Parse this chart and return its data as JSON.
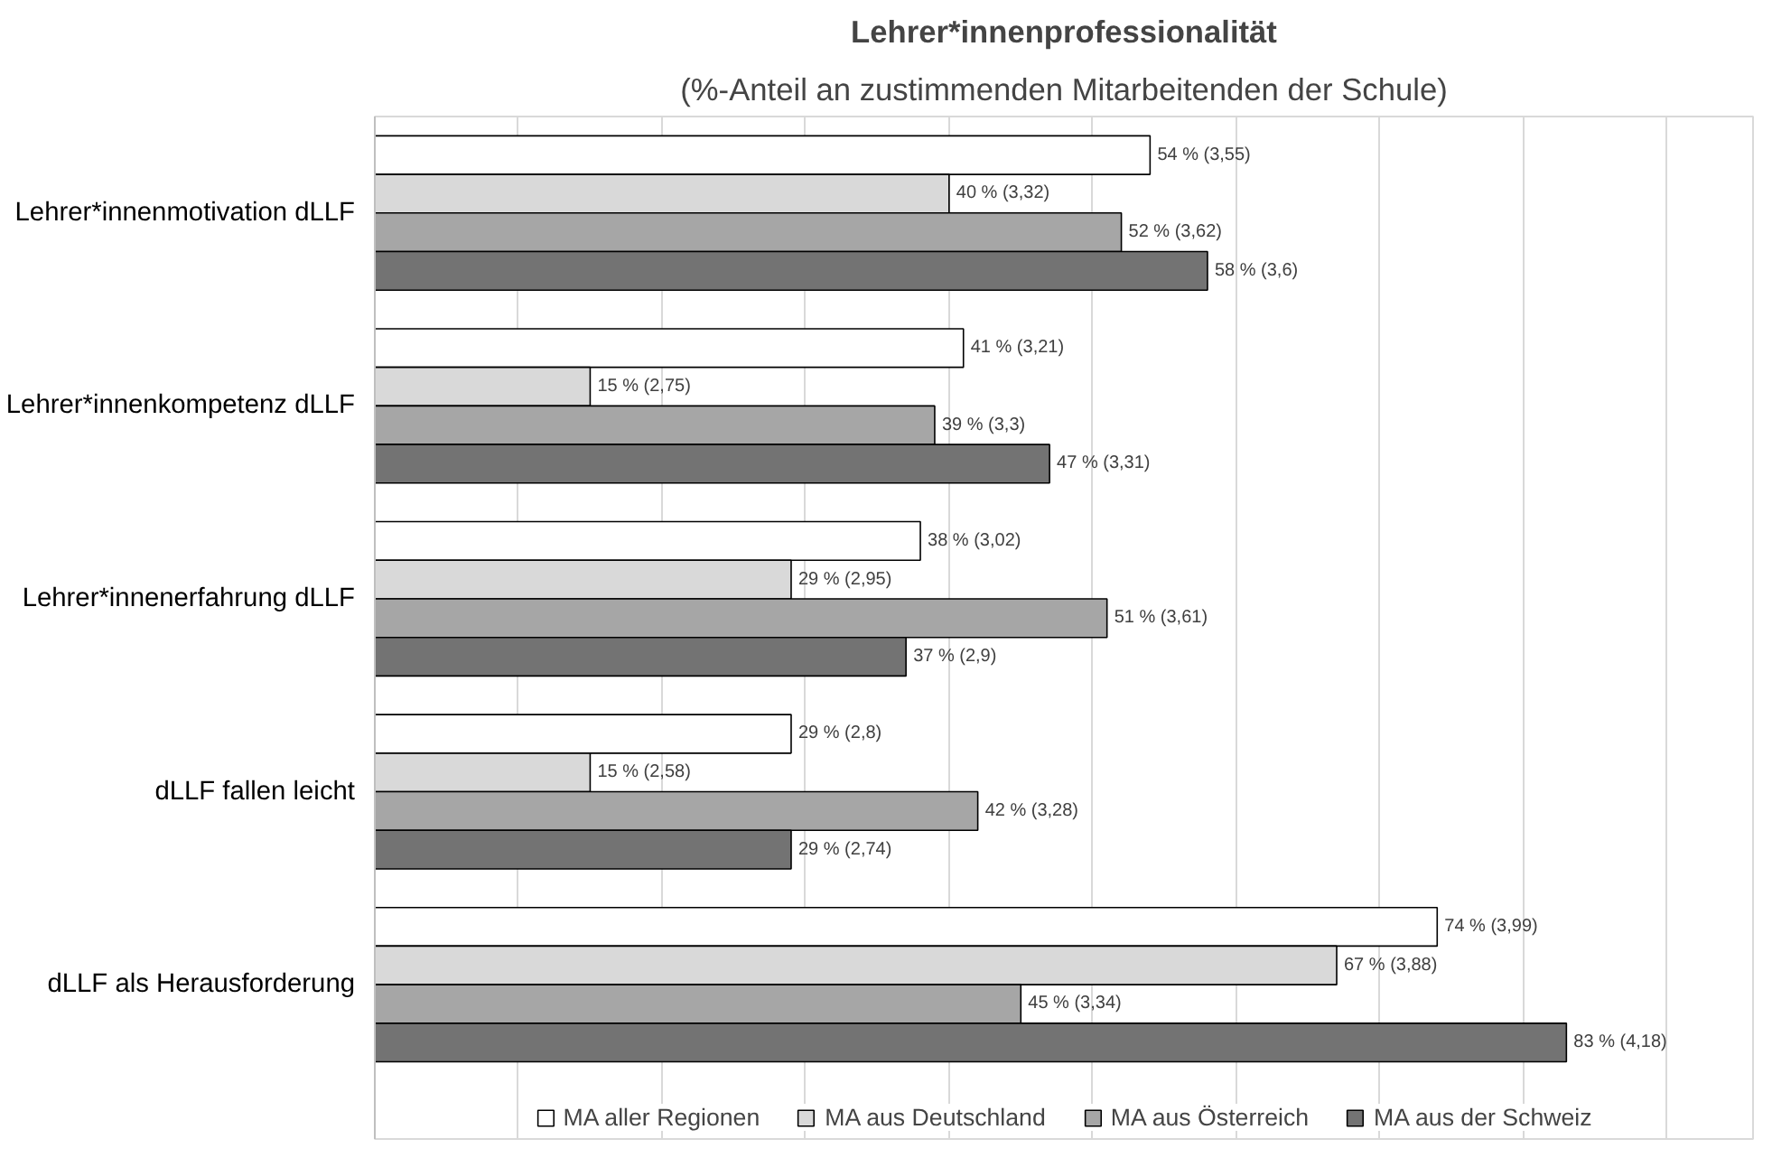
{
  "chart_data": {
    "type": "bar",
    "orientation": "horizontal",
    "title": "Lehrer*innenprofessionalität",
    "subtitle": "(%-Anteil an zustimmenden Mitarbeitenden der Schule)",
    "categories": [
      "Lehrer*innenmotivation dLLF",
      "Lehrer*innenkompetenz dLLF",
      "Lehrer*innenerfahrung dLLF",
      "dLLF fallen leicht",
      "dLLF als Herausforderung"
    ],
    "series": [
      {
        "name": "MA aller Regionen",
        "color": "#ffffff",
        "values": [
          54,
          41,
          38,
          29,
          74
        ],
        "value_labels": [
          "54 % (3,55)",
          "41 % (3,21)",
          "38 % (3,02)",
          "29 % (2,8)",
          "74 % (3,99)"
        ]
      },
      {
        "name": "MA aus Deutschland",
        "color": "#d9d9d9",
        "values": [
          40,
          15,
          29,
          15,
          67
        ],
        "value_labels": [
          "40 % (3,32)",
          "15 % (2,75)",
          "29 % (2,95)",
          "15 % (2,58)",
          "67 % (3,88)"
        ]
      },
      {
        "name": "MA aus Österreich",
        "color": "#a6a6a6",
        "values": [
          52,
          39,
          51,
          42,
          45
        ],
        "value_labels": [
          "52 % (3,62)",
          "39 % (3,3)",
          "51 % (3,61)",
          "42 % (3,28)",
          "45 % (3,34)"
        ]
      },
      {
        "name": "MA aus der Schweiz",
        "color": "#737373",
        "values": [
          58,
          47,
          37,
          29,
          83
        ],
        "value_labels": [
          "58 % (3,6)",
          "47 % (3,31)",
          "37 % (2,9)",
          "29 % (2,74)",
          "83 % (4,18)"
        ]
      }
    ],
    "xlim": [
      0,
      96
    ],
    "xticks": [
      {
        "value": 0,
        "label": null
      },
      {
        "value": 10,
        "label": null
      },
      {
        "value": 20,
        "label": null
      },
      {
        "value": 30,
        "label": null
      },
      {
        "value": 40,
        "label": null
      },
      {
        "value": 50,
        "label": null
      },
      {
        "value": 60,
        "label": null
      },
      {
        "value": 70,
        "label": null
      },
      {
        "value": 80,
        "label": null
      },
      {
        "value": 90,
        "label": null
      }
    ],
    "tick_labels": "y",
    "grid": "x",
    "legend": "bottom"
  }
}
